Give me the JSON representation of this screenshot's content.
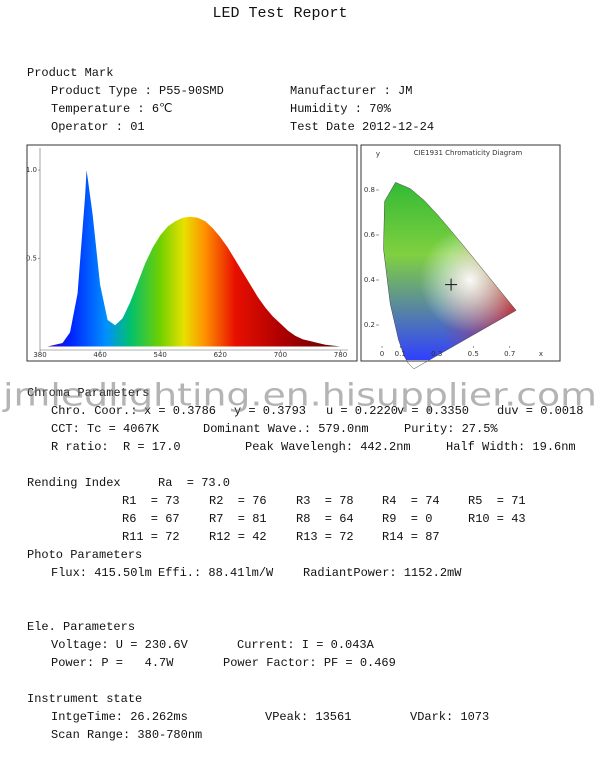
{
  "title": "LED Test Report",
  "product_mark": {
    "heading": "Product Mark",
    "items": [
      "Product Type : P55-90SMD",
      "Manufacturer : JM",
      "Temperature : 6℃",
      "Humidity : 70%",
      "Operator : 01",
      "Test Date 2012-12-24"
    ]
  },
  "chart_data": [
    {
      "type": "area",
      "x": [
        380,
        390,
        400,
        410,
        420,
        430,
        440,
        442,
        450,
        460,
        470,
        480,
        490,
        500,
        510,
        520,
        530,
        540,
        550,
        560,
        570,
        580,
        590,
        600,
        610,
        620,
        630,
        640,
        650,
        660,
        670,
        680,
        690,
        700,
        710,
        720,
        730,
        740,
        750,
        760,
        770,
        780
      ],
      "values": [
        0,
        0,
        0.01,
        0.02,
        0.08,
        0.3,
        0.85,
        1.0,
        0.75,
        0.35,
        0.15,
        0.12,
        0.16,
        0.25,
        0.36,
        0.47,
        0.56,
        0.63,
        0.68,
        0.71,
        0.73,
        0.735,
        0.73,
        0.71,
        0.67,
        0.62,
        0.56,
        0.49,
        0.42,
        0.35,
        0.28,
        0.22,
        0.17,
        0.13,
        0.09,
        0.06,
        0.04,
        0.03,
        0.02,
        0.01,
        0.005,
        0
      ],
      "xlim": [
        380,
        790
      ],
      "ylim": [
        -0.02,
        1.125
      ],
      "xticks": [
        380,
        460,
        540,
        620,
        700,
        780
      ],
      "yticks": [
        {
          "value": 1,
          "label": "1.0"
        },
        0.5
      ]
    },
    {
      "type": "scatter",
      "title": "CIE1931 Chromaticity Diagram",
      "x_label": "x",
      "y_label": "y",
      "x": [
        0.3786
      ],
      "values": [
        0.3793
      ],
      "xlim": [
        0,
        0.8
      ],
      "ylim": [
        0.05,
        0.9
      ],
      "xticks": [
        0,
        0.1,
        0.3,
        0.5,
        0.7
      ],
      "yticks": [
        0.2,
        0.4,
        0.6,
        0.8
      ]
    }
  ],
  "watermark": "jmledlighting.en.hisupplier.com",
  "chroma": {
    "heading": "Chroma Parameters",
    "items": [
      "Chro. Coor.:",
      "x = 0.3786",
      "y = 0.3793",
      "u = 0.2220",
      "v = 0.3350",
      "duv = 0.0018",
      "CCT: Tc = 4067K",
      "Dominant Wave.: 579.0nm",
      "Purity: 27.5%",
      "R ratio:  R = 17.0",
      "Peak Wavelengh: 442.2nm",
      "Half Width: 19.6nm"
    ]
  },
  "rendering": {
    "heading": "Rending Index",
    "ra": "Ra  = 73.0",
    "items": [
      "R1  = 73",
      "R2  = 76",
      "R3  = 78",
      "R4  = 74",
      "R5  = 71",
      "R6  = 67",
      "R7  = 81",
      "R8  = 64",
      "R9  = 0",
      "R10 = 43",
      "R11 = 72",
      "R12 = 42",
      "R13 = 72",
      "R14 = 87"
    ]
  },
  "photo": {
    "heading": "Photo Parameters",
    "items": [
      "Flux: 415.50lm",
      "Effi.: 88.41lm/W",
      "RadiantPower: 1152.2mW"
    ]
  },
  "ele": {
    "heading": "Ele. Parameters",
    "items": [
      "Voltage: U = 230.6V",
      "Current: I = 0.043A",
      "Power: P =   4.7W",
      "Power Factor: PF = 0.469"
    ]
  },
  "instrument": {
    "heading": "Instrument state",
    "items": [
      "IntgeTime: 26.262ms",
      "VPeak: 13561",
      "VDark: 1073",
      "Scan Range: 380-780nm"
    ]
  }
}
